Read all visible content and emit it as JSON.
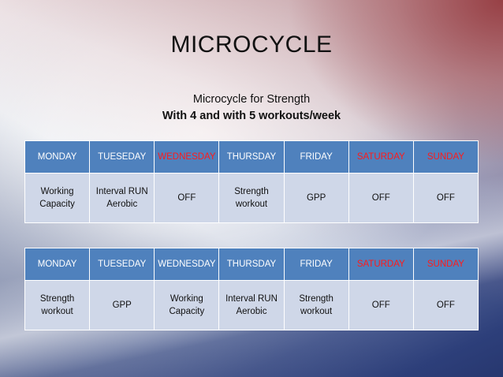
{
  "title": "MICROCYCLE",
  "subtitle_line1": "Microcycle for Strength",
  "subtitle_line2": "With 4 and with 5 workouts/week",
  "tables": [
    {
      "headers": [
        {
          "label": "MONDAY",
          "color": "#ffffff"
        },
        {
          "label": "TUESEDAY",
          "color": "#ffffff"
        },
        {
          "label": "WEDNESDAY",
          "color": "#ff1a1a"
        },
        {
          "label": "THURSDAY",
          "color": "#ffffff"
        },
        {
          "label": "FRIDAY",
          "color": "#ffffff"
        },
        {
          "label": "SATURDAY",
          "color": "#ff1a1a"
        },
        {
          "label": "SUNDAY",
          "color": "#ff1a1a"
        }
      ],
      "cells": [
        [
          "Working",
          "Capacity"
        ],
        [
          "Interval RUN",
          "Aerobic"
        ],
        [
          "OFF"
        ],
        [
          "Strength",
          "workout"
        ],
        [
          "GPP"
        ],
        [
          "OFF"
        ],
        [
          "OFF"
        ]
      ]
    },
    {
      "headers": [
        {
          "label": "MONDAY",
          "color": "#ffffff"
        },
        {
          "label": "TUESEDAY",
          "color": "#ffffff"
        },
        {
          "label": "WEDNESDAY",
          "color": "#ffffff"
        },
        {
          "label": "THURSDAY",
          "color": "#ffffff"
        },
        {
          "label": "FRIDAY",
          "color": "#ffffff"
        },
        {
          "label": "SATURDAY",
          "color": "#ff1a1a"
        },
        {
          "label": "SUNDAY",
          "color": "#ff1a1a"
        }
      ],
      "cells": [
        [
          "Strength",
          "workout"
        ],
        [
          "GPP"
        ],
        [
          "Working",
          "Capacity"
        ],
        [
          "Interval RUN",
          "Aerobic"
        ],
        [
          "Strength",
          "workout"
        ],
        [
          "OFF"
        ],
        [
          "OFF"
        ]
      ]
    }
  ],
  "colors": {
    "header_bg": "#4f81bd",
    "cell_bg": "#cfd7e8",
    "highlight_text": "#ff1a1a"
  }
}
